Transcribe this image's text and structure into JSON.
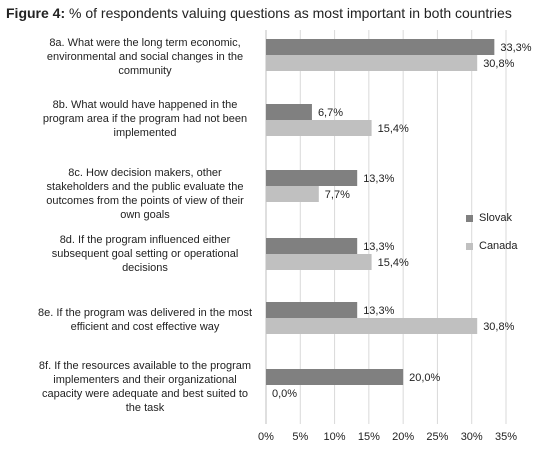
{
  "title_prefix": "Figure 4:",
  "title_rest": "% of respondents valuing questions as most important in both countries",
  "colors": {
    "slovak": "#808080",
    "canada": "#c0c0c0",
    "grid": "#d9d9d9",
    "axis": "#bfbfbf"
  },
  "chart_data": {
    "type": "bar",
    "orientation": "horizontal",
    "title": "Figure 4: % of respondents valuing questions as most important in both countries",
    "categories": [
      "8a. What were the long term economic, environmental and social changes in the community",
      "8b. What would have happened in the program area if the program had not been implemented",
      "8c. How decision makers, other stakeholders and the public evaluate the outcomes from the points of view of their own goals",
      "8d. If the program influenced either subsequent goal setting or operational decisions",
      "8e. If the program was delivered in the most efficient and cost effective way",
      "8f. If the resources available to the program implementers and their organizational capacity were adequate and best suited to the task"
    ],
    "series": [
      {
        "name": "Slovak",
        "values": [
          33.3,
          6.7,
          13.3,
          13.3,
          13.3,
          20.0
        ],
        "labels": [
          "33,3%",
          "6,7%",
          "13,3%",
          "13,3%",
          "13,3%",
          "20,0%"
        ]
      },
      {
        "name": "Canada",
        "values": [
          30.8,
          15.4,
          7.7,
          15.4,
          30.8,
          0.0
        ],
        "labels": [
          "30,8%",
          "15,4%",
          "7,7%",
          "15,4%",
          "30,8%",
          "0,0%"
        ]
      }
    ],
    "xlim": [
      0,
      35
    ],
    "xticks": [
      "0%",
      "5%",
      "10%",
      "15%",
      "20%",
      "25%",
      "30%",
      "35%"
    ],
    "grid": true,
    "legend_position": "right"
  }
}
